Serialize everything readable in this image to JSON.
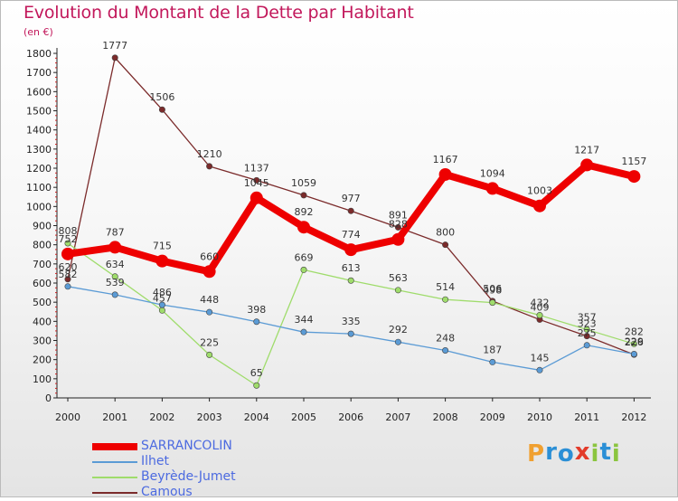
{
  "title": "Evolution du Montant de la Dette par Habitant",
  "subtitle": "(en €)",
  "logo": {
    "letters": [
      "P",
      "r",
      "o",
      "x",
      "i",
      "t",
      "i"
    ],
    "colors": [
      "#f0a030",
      "#2b8fd6",
      "#2b8fd6",
      "#e33b2a",
      "#8bc53f",
      "#2b8fd6",
      "#8bc53f"
    ]
  },
  "chart_data": {
    "type": "line",
    "title": "Evolution du Montant de la Dette par Habitant",
    "ylabel": "(en €)",
    "xlabel": "",
    "ylim": [
      0,
      1800
    ],
    "yticks": [
      0,
      100,
      200,
      300,
      400,
      500,
      600,
      700,
      800,
      900,
      1000,
      1100,
      1200,
      1300,
      1400,
      1500,
      1600,
      1700,
      1800
    ],
    "categories": [
      "2000",
      "2001",
      "2002",
      "2003",
      "2004",
      "2005",
      "2006",
      "2007",
      "2008",
      "2009",
      "2010",
      "2011",
      "2012"
    ],
    "grid": false,
    "legend": "bottom-left",
    "series": [
      {
        "name": "Camous",
        "color": "#7b2b2b",
        "values": [
          620,
          1777,
          1506,
          1210,
          1137,
          1059,
          977,
          891,
          800,
          506,
          409,
          323,
          226
        ]
      },
      {
        "name": "Beyrède-Jumet",
        "color": "#9fdc6b",
        "values": [
          808,
          634,
          457,
          225,
          65,
          669,
          613,
          563,
          514,
          498,
          432,
          357,
          282
        ]
      },
      {
        "name": "Ilhet",
        "color": "#5b9bd5",
        "values": [
          582,
          539,
          486,
          448,
          398,
          344,
          335,
          292,
          248,
          187,
          145,
          275,
          229
        ]
      },
      {
        "name": "SARRANCOLIN",
        "color": "#ee0000",
        "values": [
          752,
          787,
          715,
          660,
          1045,
          892,
          774,
          828,
          1167,
          1094,
          1003,
          1217,
          1157
        ]
      }
    ]
  },
  "legend_order": [
    "SARRANCOLIN",
    "Ilhet",
    "Beyrède-Jumet",
    "Camous"
  ]
}
